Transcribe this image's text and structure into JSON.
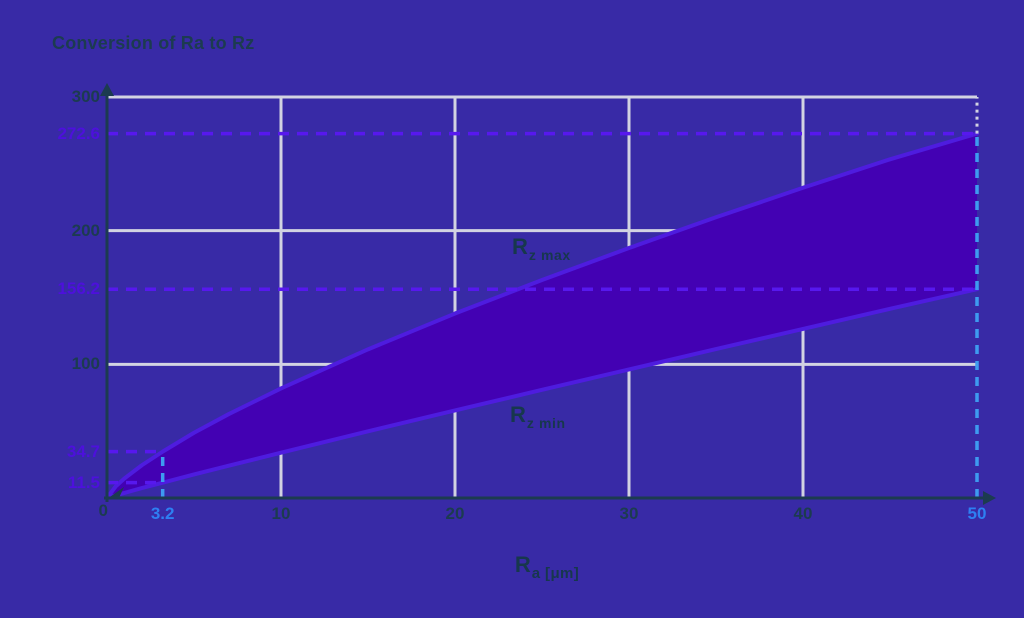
{
  "chart_data": {
    "type": "area",
    "title": "Conversion of Ra to Rz",
    "xlabel_main": "R",
    "xlabel_sub": "a [μm]",
    "xlim": [
      0,
      50
    ],
    "ylim": [
      0,
      300
    ],
    "x_ticks": [
      10,
      20,
      30,
      40
    ],
    "y_ticks": [
      300,
      200,
      100
    ],
    "origin_label": "0",
    "grid": true,
    "legend_position": "inline",
    "series": [
      {
        "name_main": "R",
        "name_sub": "z max",
        "x": [
          0,
          0.5,
          1,
          2,
          3.2,
          5,
          7,
          10,
          15,
          20,
          25,
          30,
          35,
          40,
          45,
          50
        ],
        "y": [
          0,
          8.7,
          14.6,
          24.5,
          34.7,
          48.8,
          62.8,
          82.0,
          111.2,
          138.0,
          163.1,
          187.0,
          210.0,
          232.1,
          253.4,
          272.6
        ]
      },
      {
        "name_main": "R",
        "name_sub": "z min",
        "x": [
          0,
          0.5,
          1,
          2,
          3.2,
          5,
          7,
          10,
          15,
          20,
          25,
          30,
          35,
          40,
          45,
          50
        ],
        "y": [
          0,
          2.0,
          3.8,
          7.4,
          11.5,
          17.6,
          24.2,
          33.9,
          49.9,
          65.5,
          80.9,
          96.2,
          111.4,
          126.5,
          141.5,
          156.2
        ]
      }
    ],
    "guides": {
      "h_dashed": [
        {
          "y": 272.6,
          "x_end": 50
        },
        {
          "y": 156.2,
          "x_end": 50
        },
        {
          "y": 34.7,
          "x_end": 3.2
        },
        {
          "y": 11.5,
          "x_end": 3.2
        }
      ],
      "v_dashed": [
        {
          "x": 3.2,
          "y_end": 34.7
        },
        {
          "x": 50,
          "y_end": 272.6
        }
      ],
      "v_dotted": [
        {
          "x": 50,
          "y_from": 272.6,
          "y_to": 300
        }
      ]
    },
    "colors": {
      "background": "#382AA6",
      "band_fill": "#4301B3",
      "curve_stroke": "#4E1CDF",
      "dash_purple": "#5718EE",
      "dash_cyan": "#3E9BF0",
      "grid": "#D2D3E2",
      "axis": "#1C3B50",
      "text_dark": "#1C3B50",
      "mark_purple": "#4D10DC",
      "mark_blue": "#2E7FF2"
    }
  }
}
